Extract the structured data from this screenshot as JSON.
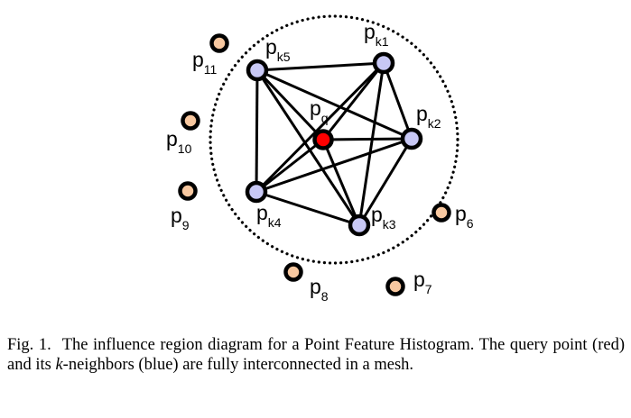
{
  "colors": {
    "query_fill": "#ff0000",
    "neighbor_fill": "#c8c8f5",
    "other_fill": "#f8c8a0",
    "outline": "#000000"
  },
  "diagram": {
    "query": {
      "label": "p",
      "sub": "q"
    },
    "neighbors": [
      {
        "id": "k1",
        "label": "p",
        "sub": "k1"
      },
      {
        "id": "k2",
        "label": "p",
        "sub": "k2"
      },
      {
        "id": "k3",
        "label": "p",
        "sub": "k3"
      },
      {
        "id": "k4",
        "label": "p",
        "sub": "k4"
      },
      {
        "id": "k5",
        "label": "p",
        "sub": "k5"
      }
    ],
    "others": [
      {
        "id": "6",
        "label": "p",
        "sub": "6"
      },
      {
        "id": "7",
        "label": "p",
        "sub": "7"
      },
      {
        "id": "8",
        "label": "p",
        "sub": "8"
      },
      {
        "id": "9",
        "label": "p",
        "sub": "9"
      },
      {
        "id": "10",
        "label": "p",
        "sub": "10"
      },
      {
        "id": "11",
        "label": "p",
        "sub": "11"
      }
    ]
  },
  "caption": {
    "fig_num": "Fig. 1.",
    "part1": "The influence region diagram for a Point Feature Histogram. The query point (red) and its ",
    "k": "k",
    "part2": "-neighbors (blue) are fully interconnected in a mesh."
  }
}
